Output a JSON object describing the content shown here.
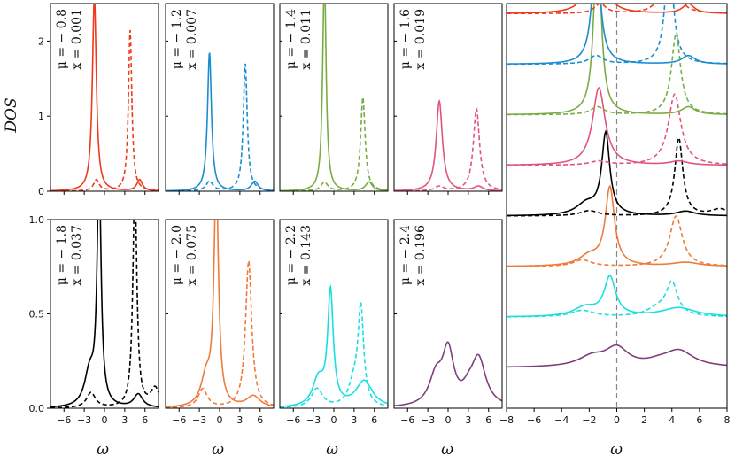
{
  "chart_data": {
    "type": "line",
    "ylabel": "DOS",
    "xlabel": "ω",
    "xlim": [
      -8,
      8
    ],
    "small_panel_xticks": [
      "−6",
      "−3",
      "0",
      "3",
      "6"
    ],
    "top_row_yticks": [
      "0",
      "1",
      "2"
    ],
    "bottom_row_yticks": [
      "0.0",
      "0.5",
      "1.0"
    ],
    "top_row_ylim": [
      0,
      2.5
    ],
    "bottom_row_ylim": [
      0,
      1.0
    ],
    "right_panel_xticks": [
      "−8",
      "−6",
      "−4",
      "−2",
      "0",
      "2",
      "4",
      "6",
      "8"
    ],
    "series_style": "solid = particle-like DOS, dashed = hole-like DOS",
    "panels": [
      {
        "mu_label": "μ = − 0.8",
        "x_label": "x = 0.001",
        "color": "#ee3a1b",
        "solid": [
          [
            -1.5,
            2.6,
            0.35
          ],
          [
            5.2,
            0.15,
            0.5
          ]
        ],
        "dashed": [
          [
            3.8,
            2.15,
            0.3
          ],
          [
            -1.2,
            0.15,
            0.5
          ]
        ]
      },
      {
        "mu_label": "μ = − 1.2",
        "x_label": "x = 0.007",
        "color": "#1a8dd0",
        "solid": [
          [
            -1.5,
            1.85,
            0.35
          ],
          [
            5.2,
            0.13,
            0.6
          ]
        ],
        "dashed": [
          [
            3.8,
            1.7,
            0.35
          ],
          [
            -1.5,
            0.13,
            0.6
          ]
        ]
      },
      {
        "mu_label": "μ = − 1.4",
        "x_label": "x = 0.011",
        "color": "#79ad44",
        "solid": [
          [
            -1.4,
            2.9,
            0.3
          ],
          [
            5.2,
            0.12,
            0.6
          ]
        ],
        "dashed": [
          [
            4.3,
            1.25,
            0.4
          ],
          [
            -1.4,
            0.12,
            0.6
          ]
        ]
      },
      {
        "mu_label": "μ = − 1.6",
        "x_label": "x = 0.019",
        "color": "#e0557a",
        "solid": [
          [
            -1.3,
            1.2,
            0.55
          ],
          [
            4.5,
            0.06,
            0.8
          ]
        ],
        "dashed": [
          [
            4.2,
            1.1,
            0.55
          ],
          [
            -1.3,
            0.06,
            0.8
          ]
        ]
      },
      {
        "mu_label": "μ = − 1.8",
        "x_label": "x = 0.037",
        "color": "#000000",
        "solid": [
          [
            -0.8,
            1.25,
            0.35
          ],
          [
            -2.2,
            0.18,
            0.9
          ],
          [
            5.0,
            0.07,
            0.8
          ]
        ],
        "dashed": [
          [
            4.5,
            1.2,
            0.35
          ],
          [
            -2.0,
            0.08,
            0.8
          ],
          [
            7.5,
            0.1,
            0.8
          ]
        ]
      },
      {
        "mu_label": "μ = − 2.0",
        "x_label": "x = 0.075",
        "color": "#f07a3a",
        "solid": [
          [
            -0.5,
            1.2,
            0.4
          ],
          [
            -2.0,
            0.15,
            0.9
          ],
          [
            5.0,
            0.06,
            1.2
          ]
        ],
        "dashed": [
          [
            4.3,
            0.78,
            0.55
          ],
          [
            -2.5,
            0.1,
            0.8
          ]
        ]
      },
      {
        "mu_label": "μ = − 2.2",
        "x_label": "x = 0.143",
        "color": "#19e0e0",
        "solid": [
          [
            -0.5,
            0.6,
            0.5
          ],
          [
            -2.3,
            0.14,
            1.0
          ],
          [
            4.5,
            0.14,
            1.5
          ]
        ],
        "dashed": [
          [
            4.0,
            0.5,
            0.5
          ],
          [
            -2.5,
            0.1,
            1.0
          ],
          [
            3.0,
            0.12,
            1.0
          ]
        ]
      },
      {
        "mu_label": "μ = − 2.4",
        "x_label": "x = 0.196",
        "color": "#7e3f7c",
        "solid": [
          [
            0.0,
            0.28,
            1.0
          ],
          [
            -1.8,
            0.15,
            1.2
          ],
          [
            4.5,
            0.25,
            1.3
          ],
          [
            3.0,
            0.05,
            1.0
          ]
        ],
        "dashed": []
      }
    ],
    "stack_offsets": [
      0.2,
      0.45,
      0.7,
      0.95,
      1.2,
      1.45,
      1.7,
      1.95
    ],
    "stack_ylim": [
      0,
      2.0
    ]
  }
}
